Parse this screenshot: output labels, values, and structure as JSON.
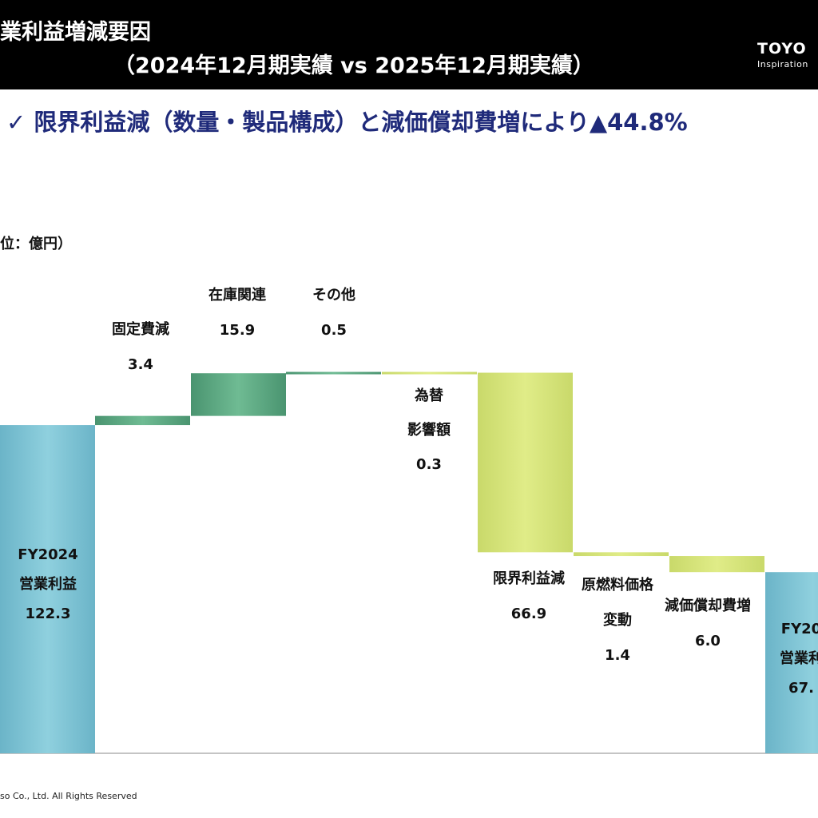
{
  "header": {
    "title_line1": "業利益増減要因",
    "title_line2": "（2024年12月期実績 vs 2025年12月期実績）",
    "logo_name": "TOYO",
    "logo_sub": "Inspiration"
  },
  "subtitle": "✓ 限界利益減（数量・製品構成）と減価償却費増により▲44.8%",
  "unit_label": "位：億円）",
  "footer": "so Co., Ltd. All Rights Reserved",
  "colors": {
    "total": "#7fc3d3",
    "increase": "#5aa882",
    "decrease": "#d6e37c",
    "header_bg": "#000000",
    "subtitle": "#1f2a7a"
  },
  "chart_data": {
    "type": "waterfall",
    "unit": "億円",
    "steps": [
      {
        "kind": "total",
        "labels": [
          "FY2024",
          "営業利益"
        ],
        "value": "122.3",
        "end": 122.3
      },
      {
        "kind": "increase",
        "labels": [
          "固定費減"
        ],
        "value": "3.4",
        "delta": 3.4
      },
      {
        "kind": "increase",
        "labels": [
          "在庫関連"
        ],
        "value": "15.9",
        "delta": 15.9
      },
      {
        "kind": "increase",
        "labels": [
          "その他"
        ],
        "value": "0.5",
        "delta": 0.5
      },
      {
        "kind": "decrease",
        "labels": [
          "為替",
          "影響額"
        ],
        "value": "0.3",
        "delta": -0.3
      },
      {
        "kind": "decrease",
        "labels": [
          "限界利益減"
        ],
        "value": "66.9",
        "delta": -66.9
      },
      {
        "kind": "decrease",
        "labels": [
          "原燃料価格",
          "変動"
        ],
        "value": "1.4",
        "delta": -1.4
      },
      {
        "kind": "decrease",
        "labels": [
          "減価償却費増"
        ],
        "value": "6.0",
        "delta": -6.0
      },
      {
        "kind": "total",
        "labels": [
          "FY20",
          "営業利"
        ],
        "value": "67.",
        "end": 67.5
      }
    ]
  }
}
